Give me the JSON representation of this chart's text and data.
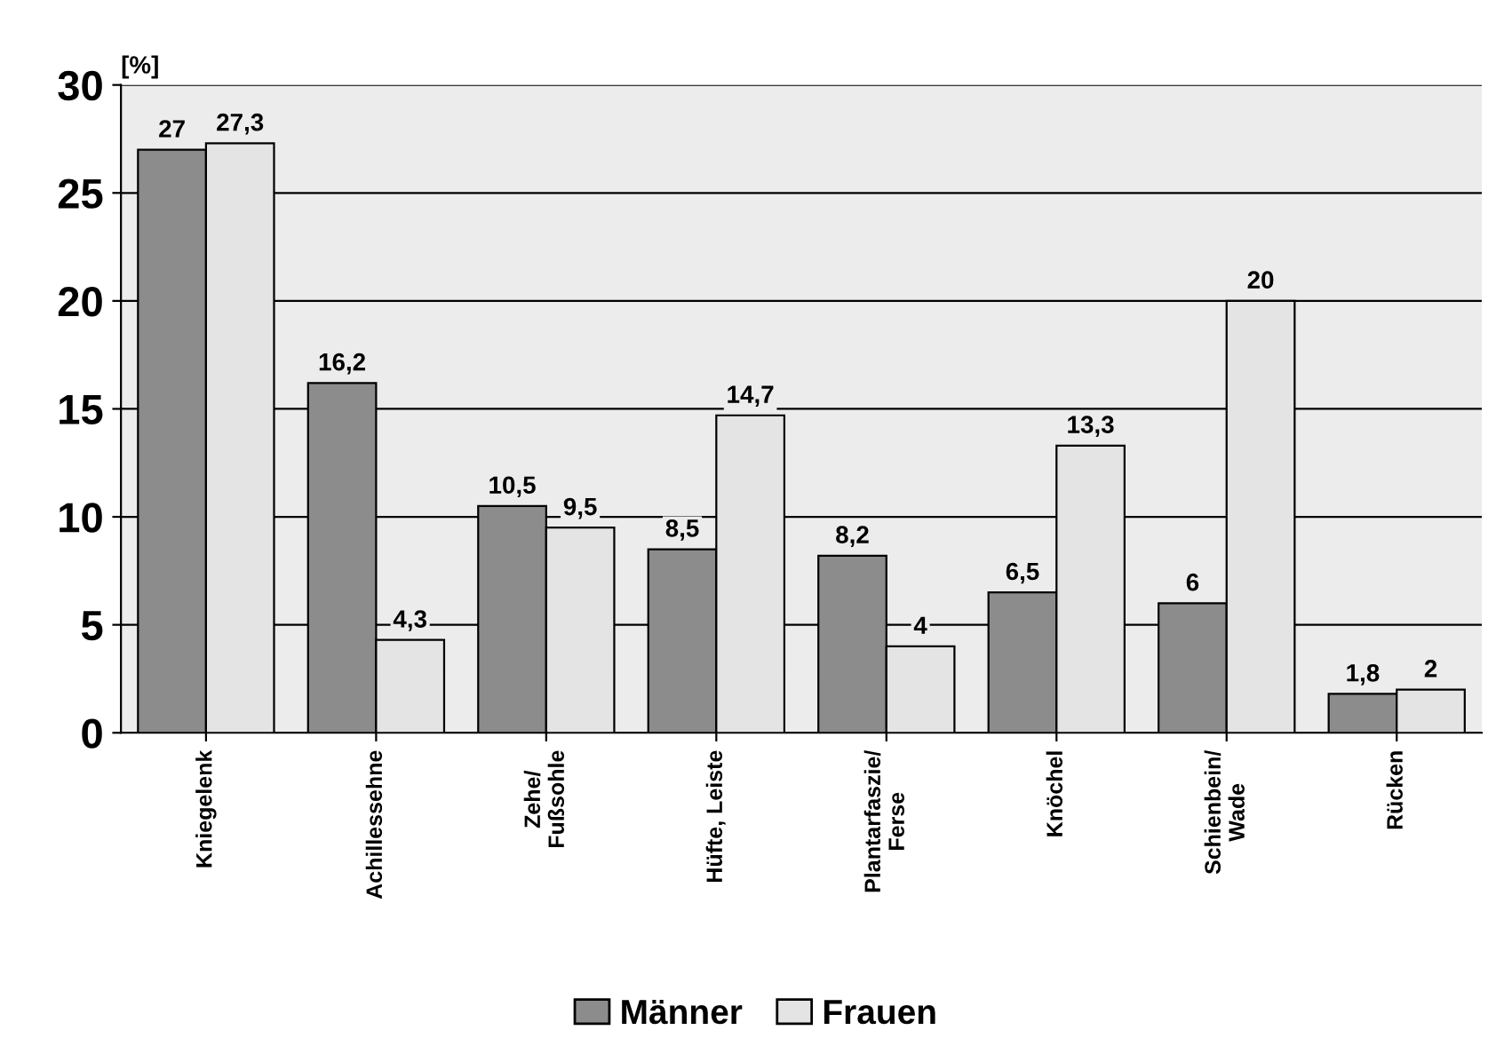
{
  "chart_data": {
    "type": "bar",
    "ylabel": "[%]",
    "categories": [
      "Kniegelenk",
      "Achillessehne",
      "Zehe/\nFußsohle",
      "Hüfte, Leiste",
      "Plantarfaszie/\nFerse",
      "Knöchel",
      "Schienbein/\nWade",
      "Rücken"
    ],
    "series": [
      {
        "name": "Männer",
        "color": "#8c8c8c",
        "values": [
          27,
          16.2,
          10.5,
          8.5,
          8.2,
          6.5,
          6,
          1.8
        ],
        "value_labels": [
          "27",
          "16,2",
          "10,5",
          "8,5",
          "8,2",
          "6,5",
          "6",
          "1,8"
        ]
      },
      {
        "name": "Frauen",
        "color": "#e4e4e4",
        "values": [
          27.3,
          4.3,
          9.5,
          14.7,
          4,
          13.3,
          20,
          2
        ],
        "value_labels": [
          "27,3",
          "4,3",
          "9,5",
          "14,7",
          "4",
          "13,3",
          "20",
          "2"
        ]
      }
    ],
    "ylim": [
      0,
      30
    ],
    "yticks": [
      0,
      5,
      10,
      15,
      20,
      25,
      30
    ],
    "grid": "y",
    "legend": "bottom"
  }
}
